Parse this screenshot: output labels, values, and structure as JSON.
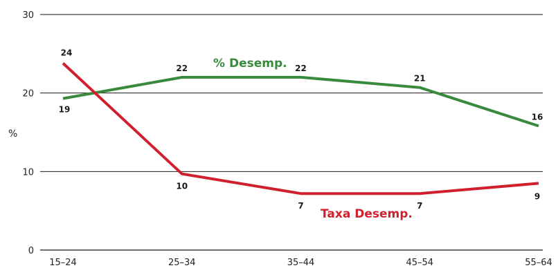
{
  "chart_data": {
    "type": "line",
    "categories": [
      "15–24",
      "25–34",
      "35–44",
      "45–54",
      "55–64"
    ],
    "ylabel": "%",
    "ylim": [
      0,
      30
    ],
    "yticks": [
      0,
      10,
      20,
      30
    ],
    "grid": true,
    "series": [
      {
        "name": "% Desemp.",
        "color": "#3a8a3e",
        "values": [
          19.3,
          22.0,
          22.0,
          20.7,
          15.8
        ],
        "labels": [
          "19",
          "22",
          "22",
          "21",
          "16"
        ]
      },
      {
        "name": "Taxa Desemp.",
        "color": "#d0202e",
        "values": [
          23.8,
          9.7,
          7.2,
          7.2,
          8.5
        ],
        "labels": [
          "24",
          "10",
          "7",
          "7",
          "9"
        ]
      }
    ]
  }
}
